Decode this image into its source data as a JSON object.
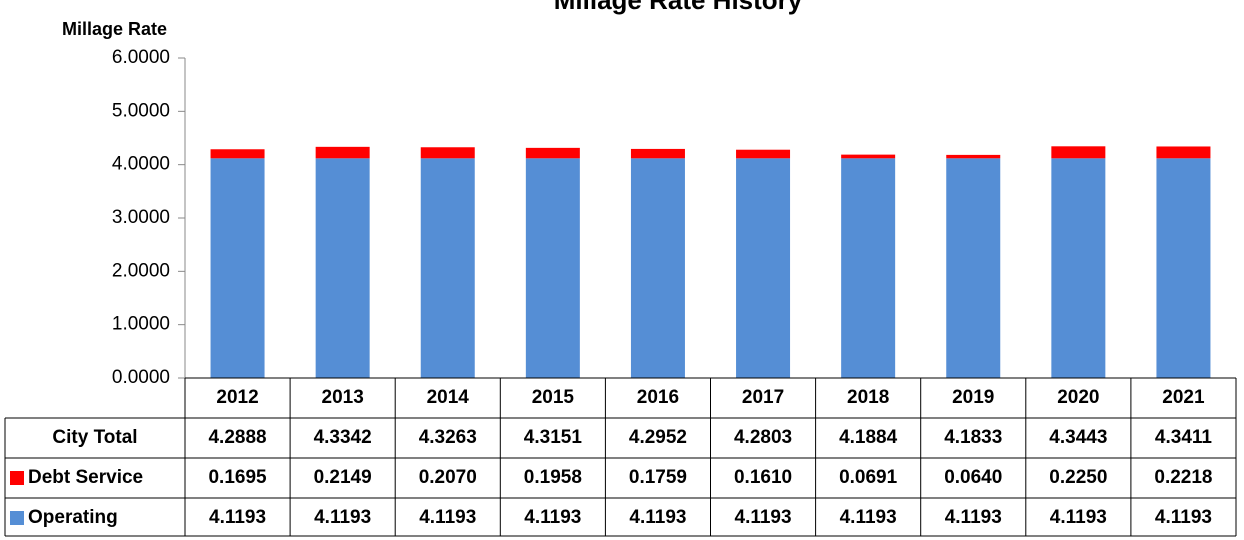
{
  "chart_data": {
    "type": "bar",
    "stacked": true,
    "title": "Millage Rate History",
    "ylabel": "Millage Rate",
    "categories": [
      "2012",
      "2013",
      "2014",
      "2015",
      "2016",
      "2017",
      "2018",
      "2019",
      "2020",
      "2021"
    ],
    "series": [
      {
        "name": "Operating",
        "color": "#558ed5",
        "values": [
          4.1193,
          4.1193,
          4.1193,
          4.1193,
          4.1193,
          4.1193,
          4.1193,
          4.1193,
          4.1193,
          4.1193
        ]
      },
      {
        "name": "Debt Service",
        "color": "#ff0000",
        "values": [
          0.1695,
          0.2149,
          0.207,
          0.1958,
          0.1759,
          0.161,
          0.0691,
          0.064,
          0.225,
          0.2218
        ],
        "value_labels": [
          "0.1695",
          "0.2149",
          "0.2070",
          "0.1958",
          "0.1759",
          "0.1610",
          "0.0691",
          "0.0640",
          "0.2250",
          "0.2218"
        ]
      }
    ],
    "totals": {
      "name": "City Total",
      "values": [
        4.2888,
        4.3342,
        4.3263,
        4.3151,
        4.2952,
        4.2803,
        4.1884,
        4.1833,
        4.3443,
        4.3411
      ]
    },
    "ylim": [
      0,
      6
    ],
    "yticks": [
      {
        "value": 0,
        "label": "0.0000"
      },
      {
        "value": 1,
        "label": "1.0000"
      },
      {
        "value": 2,
        "label": "2.0000"
      },
      {
        "value": 3,
        "label": "3.0000"
      },
      {
        "value": 4,
        "label": "4.0000"
      },
      {
        "value": 5,
        "label": "5.0000"
      },
      {
        "value": 6,
        "label": "6.0000"
      }
    ]
  }
}
